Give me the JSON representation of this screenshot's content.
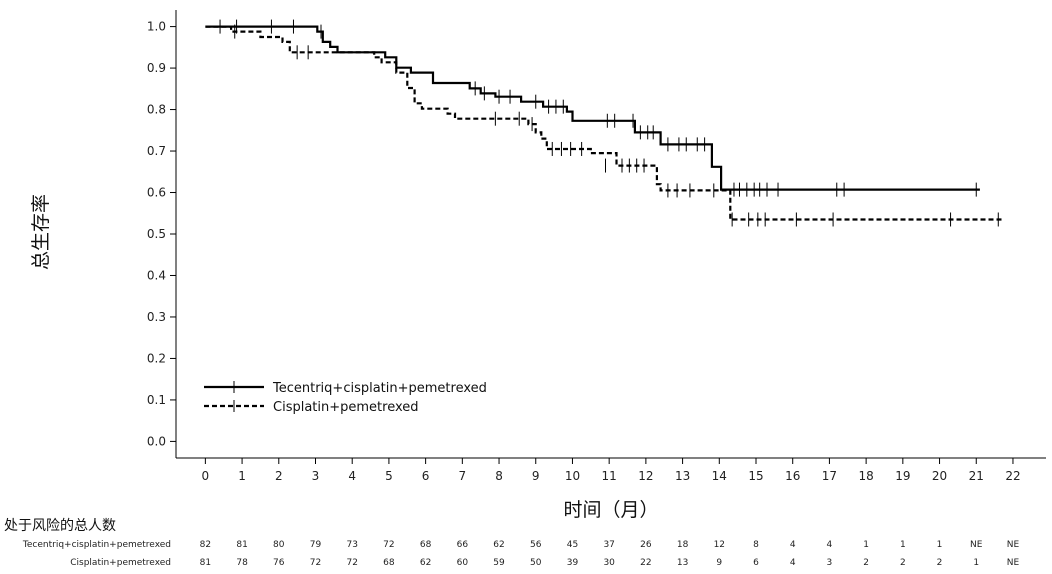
{
  "chart_data": {
    "type": "line",
    "title": "",
    "xlabel": "时间（月）",
    "ylabel": "总生存率",
    "xlim": [
      -0.8,
      22.9
    ],
    "ylim": [
      -0.04,
      1.04
    ],
    "xticks": [
      0,
      1,
      2,
      3,
      4,
      5,
      6,
      7,
      8,
      9,
      10,
      11,
      12,
      13,
      14,
      15,
      16,
      17,
      18,
      19,
      20,
      21,
      22
    ],
    "yticks": [
      "0.0",
      "0.1",
      "0.2",
      "0.3",
      "0.4",
      "0.5",
      "0.6",
      "0.7",
      "0.8",
      "0.9",
      "1.0"
    ],
    "legend_position": "bottom-left",
    "series": [
      {
        "name": "Tecentriq+cisplatin+pemetrexed",
        "style": "solid",
        "color": "#000000",
        "steps": [
          [
            0,
            1.0
          ],
          [
            3.05,
            0.988
          ],
          [
            3.2,
            0.963
          ],
          [
            3.4,
            0.951
          ],
          [
            3.6,
            0.938
          ],
          [
            4.9,
            0.926
          ],
          [
            5.2,
            0.901
          ],
          [
            5.6,
            0.889
          ],
          [
            6.2,
            0.864
          ],
          [
            7.2,
            0.851
          ],
          [
            7.5,
            0.839
          ],
          [
            7.9,
            0.831
          ],
          [
            8.6,
            0.819
          ],
          [
            9.2,
            0.807
          ],
          [
            9.85,
            0.795
          ],
          [
            10.0,
            0.773
          ],
          [
            11.7,
            0.745
          ],
          [
            12.4,
            0.716
          ],
          [
            13.8,
            0.662
          ],
          [
            14.05,
            0.607
          ],
          [
            21.1,
            0.607
          ]
        ],
        "censors": [
          [
            0.4,
            1.0
          ],
          [
            0.85,
            1.0
          ],
          [
            1.8,
            1.0
          ],
          [
            2.4,
            1.0
          ],
          [
            3.15,
            0.988
          ],
          [
            7.35,
            0.851
          ],
          [
            7.6,
            0.839
          ],
          [
            8.0,
            0.831
          ],
          [
            8.3,
            0.831
          ],
          [
            9.0,
            0.819
          ],
          [
            9.35,
            0.807
          ],
          [
            9.55,
            0.807
          ],
          [
            9.75,
            0.807
          ],
          [
            10.95,
            0.773
          ],
          [
            11.15,
            0.773
          ],
          [
            11.65,
            0.773
          ],
          [
            11.85,
            0.745
          ],
          [
            12.05,
            0.745
          ],
          [
            12.2,
            0.745
          ],
          [
            12.6,
            0.716
          ],
          [
            12.9,
            0.716
          ],
          [
            13.1,
            0.716
          ],
          [
            13.4,
            0.716
          ],
          [
            13.6,
            0.716
          ],
          [
            14.4,
            0.607
          ],
          [
            14.55,
            0.607
          ],
          [
            14.75,
            0.607
          ],
          [
            14.95,
            0.607
          ],
          [
            15.1,
            0.607
          ],
          [
            15.3,
            0.607
          ],
          [
            15.6,
            0.607
          ],
          [
            17.2,
            0.607
          ],
          [
            17.4,
            0.607
          ],
          [
            21.0,
            0.607
          ]
        ]
      },
      {
        "name": "Cisplatin+pemetrexed",
        "style": "dashed",
        "color": "#000000",
        "steps": [
          [
            0,
            1.0
          ],
          [
            0.7,
            0.988
          ],
          [
            1.5,
            0.975
          ],
          [
            2.1,
            0.963
          ],
          [
            2.3,
            0.938
          ],
          [
            4.6,
            0.926
          ],
          [
            4.8,
            0.914
          ],
          [
            5.2,
            0.889
          ],
          [
            5.5,
            0.852
          ],
          [
            5.7,
            0.815
          ],
          [
            5.9,
            0.802
          ],
          [
            6.6,
            0.79
          ],
          [
            6.8,
            0.778
          ],
          [
            8.8,
            0.765
          ],
          [
            9.0,
            0.745
          ],
          [
            9.15,
            0.73
          ],
          [
            9.3,
            0.705
          ],
          [
            10.5,
            0.695
          ],
          [
            11.2,
            0.665
          ],
          [
            12.3,
            0.62
          ],
          [
            12.4,
            0.605
          ],
          [
            14.3,
            0.535
          ],
          [
            21.7,
            0.535
          ]
        ],
        "censors": [
          [
            0.8,
            0.988
          ],
          [
            2.5,
            0.938
          ],
          [
            2.8,
            0.938
          ],
          [
            7.9,
            0.778
          ],
          [
            8.55,
            0.778
          ],
          [
            8.9,
            0.765
          ],
          [
            9.45,
            0.705
          ],
          [
            9.7,
            0.705
          ],
          [
            9.95,
            0.705
          ],
          [
            10.25,
            0.705
          ],
          [
            10.9,
            0.665
          ],
          [
            11.35,
            0.665
          ],
          [
            11.55,
            0.665
          ],
          [
            11.75,
            0.665
          ],
          [
            11.95,
            0.665
          ],
          [
            12.6,
            0.605
          ],
          [
            12.85,
            0.605
          ],
          [
            13.2,
            0.605
          ],
          [
            13.85,
            0.605
          ],
          [
            14.35,
            0.535
          ],
          [
            14.8,
            0.535
          ],
          [
            15.05,
            0.535
          ],
          [
            15.25,
            0.535
          ],
          [
            16.1,
            0.535
          ],
          [
            17.1,
            0.535
          ],
          [
            20.3,
            0.535
          ],
          [
            21.6,
            0.535
          ]
        ]
      }
    ],
    "risk_table": {
      "title": "处于风险的总人数",
      "rows": [
        {
          "name": "Tecentriq+cisplatin+pemetrexed",
          "values": [
            "82",
            "81",
            "80",
            "79",
            "73",
            "72",
            "68",
            "66",
            "62",
            "56",
            "45",
            "37",
            "26",
            "18",
            "12",
            "8",
            "4",
            "4",
            "1",
            "1",
            "1",
            "NE",
            "NE"
          ]
        },
        {
          "name": "Cisplatin+pemetrexed",
          "values": [
            "81",
            "78",
            "76",
            "72",
            "72",
            "68",
            "62",
            "60",
            "59",
            "50",
            "39",
            "30",
            "22",
            "13",
            "9",
            "6",
            "4",
            "3",
            "2",
            "2",
            "2",
            "1",
            "NE"
          ]
        }
      ]
    }
  }
}
